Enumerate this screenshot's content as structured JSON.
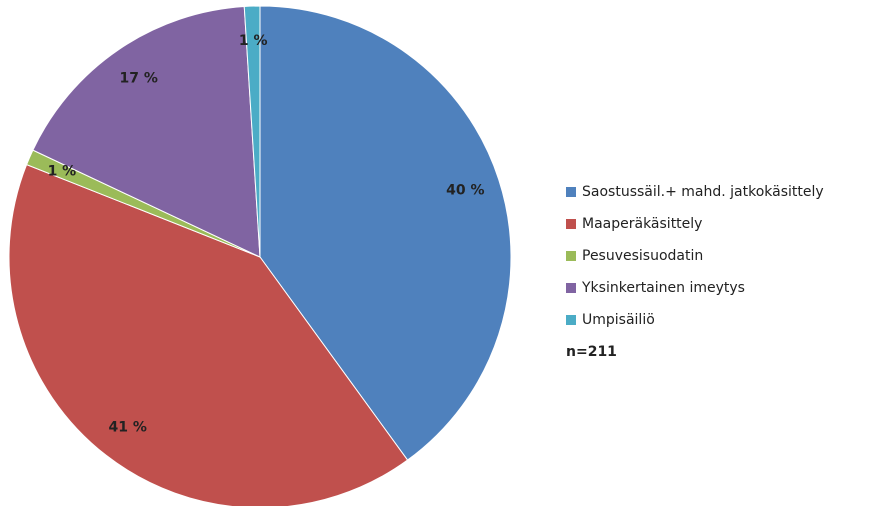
{
  "chart_data": {
    "type": "pie",
    "categories": [
      "Saostussäil.+ mahd. jatkokäsittely",
      "Maaperäkäsittely",
      "Pesuvesisuodatin",
      "Yksinkertainen imeytys",
      "Umpisäiliö"
    ],
    "values": [
      40,
      41,
      1,
      17,
      1
    ],
    "value_labels": [
      "40 %",
      "41 %",
      "1 %",
      "17 %",
      "1 %"
    ],
    "colors": [
      "#4f81bd",
      "#c0504d",
      "#9bbb59",
      "#8064a2",
      "#4bacc6"
    ],
    "annotation": "n=211",
    "legend": "right"
  }
}
